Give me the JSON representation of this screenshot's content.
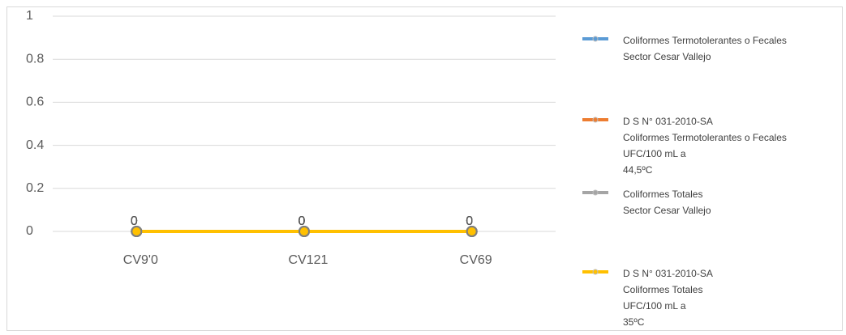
{
  "chart_data": {
    "type": "line",
    "categories": [
      "CV9'0",
      "CV121",
      "CV69"
    ],
    "series": [
      {
        "name": "Coliformes Termotolerantes o Fecales\nSector Cesar Vallejo",
        "color": "#5b9bd5",
        "values": [
          0,
          0,
          0
        ]
      },
      {
        "name": "D S N° 031-2010-SA\nColiformes Termotolerantes o Fecales\nUFC/100 mL a\n44,5ºC",
        "color": "#ed7d31",
        "values": [
          0,
          0,
          0
        ]
      },
      {
        "name": "Coliformes Totales\nSector Cesar Vallejo",
        "color": "#a5a5a5",
        "values": [
          0,
          0,
          0
        ]
      },
      {
        "name": "D S N° 031-2010-SA\nColiformes Totales\nUFC/100 mL a\n35ºC",
        "color": "#ffc000",
        "values": [
          0,
          0,
          0
        ]
      }
    ],
    "ylim": [
      0,
      1
    ],
    "yticks": [
      0,
      0.2,
      0.4,
      0.6,
      0.8,
      1
    ],
    "grid": true,
    "legend": "right"
  }
}
